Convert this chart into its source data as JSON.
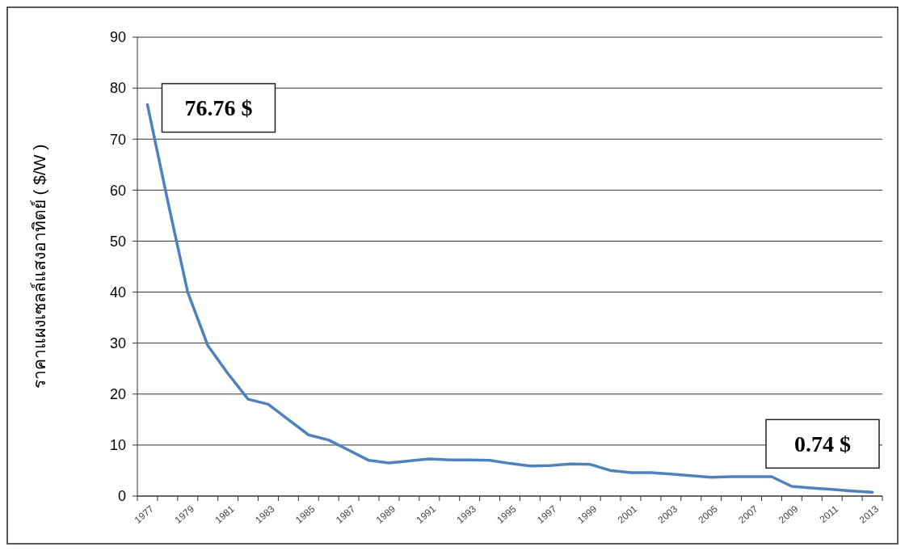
{
  "chart_data": {
    "type": "line",
    "ylabel": "ราคาแผงเซลล์แสงอาทิตย์ ( $/W )",
    "categories": [
      "1977",
      null,
      "1979",
      null,
      "1981",
      null,
      "1983",
      null,
      "1985",
      null,
      "1987",
      null,
      "1989",
      null,
      "1991",
      null,
      "1993",
      null,
      "1995",
      null,
      "1997",
      null,
      "1999",
      null,
      "2001",
      null,
      "2003",
      null,
      "2005",
      null,
      "2007",
      null,
      "2009",
      null,
      "2011",
      null,
      "2013"
    ],
    "series": [
      {
        "color": "#4f81bd",
        "values": [
          76.76,
          58,
          40,
          29.5,
          24,
          19,
          18,
          15,
          12,
          11,
          9,
          7,
          6.5,
          6.9,
          7.3,
          7.1,
          7.1,
          7.0,
          6.4,
          5.9,
          6.0,
          6.3,
          6.2,
          5.0,
          4.6,
          4.6,
          4.3,
          4.0,
          3.7,
          3.8,
          3.8,
          3.8,
          1.9,
          1.6,
          1.3,
          1.0,
          0.74
        ]
      }
    ],
    "ylim": [
      0,
      90
    ],
    "yticks": [
      0,
      10,
      20,
      30,
      40,
      50,
      60,
      70,
      80,
      90
    ],
    "grid": "y",
    "marker": "none",
    "line_style": "solid",
    "annotations": [
      {
        "text": "76.76 $",
        "x": "1977",
        "y": 76.76
      },
      {
        "text": "0.74 $",
        "x": "2013",
        "y": 0.74
      }
    ]
  }
}
